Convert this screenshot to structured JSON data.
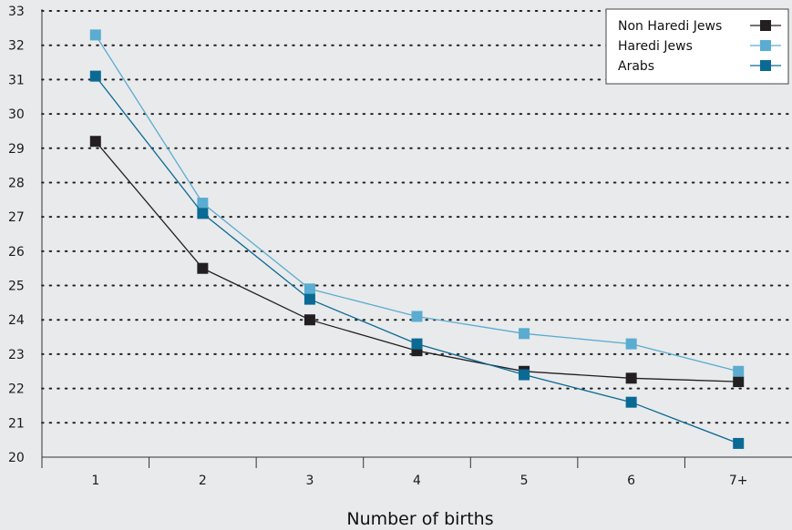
{
  "chart_data": {
    "type": "line",
    "title": "",
    "xlabel": "Number of births",
    "ylabel": "",
    "categories": [
      "1",
      "2",
      "3",
      "4",
      "5",
      "6",
      "7+"
    ],
    "yticks": [
      "20",
      "21",
      "22",
      "23",
      "24",
      "25",
      "26",
      "27",
      "28",
      "29",
      "30",
      "31",
      "32",
      "33"
    ],
    "ylim": [
      20,
      33
    ],
    "grid": "horizontal-dotted",
    "legend_position": "top-right",
    "series": [
      {
        "name": "Non Haredi Jews",
        "color": "#231f20",
        "values": [
          29.2,
          25.5,
          24.0,
          23.1,
          22.5,
          22.3,
          22.2
        ]
      },
      {
        "name": "Haredi Jews",
        "color": "#5aacd0",
        "values": [
          32.3,
          27.4,
          24.9,
          24.1,
          23.6,
          23.3,
          22.5
        ]
      },
      {
        "name": "Arabs",
        "color": "#0b6a94",
        "values": [
          31.1,
          27.1,
          24.6,
          23.3,
          22.4,
          21.6,
          20.4
        ]
      }
    ]
  }
}
